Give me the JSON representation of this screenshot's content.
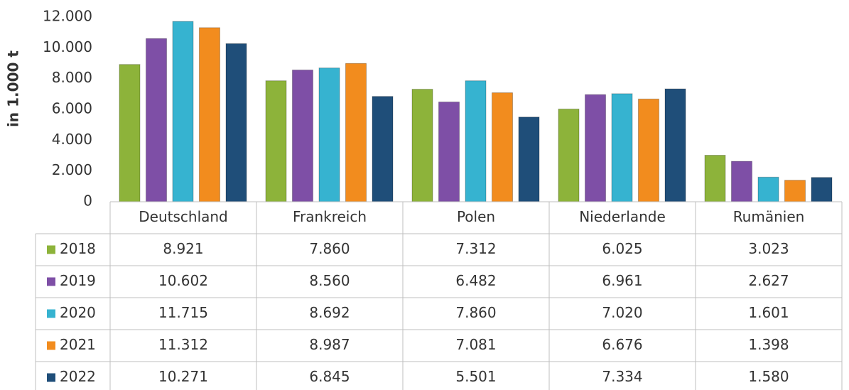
{
  "chart_data": {
    "type": "bar",
    "y_label": "in 1.000 t",
    "categories": [
      "Deutschland",
      "Frankreich",
      "Polen",
      "Niederlande",
      "Rumänien"
    ],
    "series": [
      {
        "name": "2018",
        "color": "#8db33a",
        "values": [
          8921,
          7860,
          7312,
          6025,
          3023
        ],
        "value_labels": [
          "8.921",
          "7.860",
          "7.312",
          "6.025",
          "3.023"
        ]
      },
      {
        "name": "2019",
        "color": "#7e4fa6",
        "values": [
          10602,
          8560,
          6482,
          6961,
          2627
        ],
        "value_labels": [
          "10.602",
          "8.560",
          "6.482",
          "6.961",
          "2.627"
        ]
      },
      {
        "name": "2020",
        "color": "#36b3d0",
        "values": [
          11715,
          8692,
          7860,
          7020,
          1601
        ],
        "value_labels": [
          "11.715",
          "8.692",
          "7.860",
          "7.020",
          "1.601"
        ]
      },
      {
        "name": "2021",
        "color": "#f28c1e",
        "values": [
          11312,
          8987,
          7081,
          6676,
          1398
        ],
        "value_labels": [
          "11.312",
          "8.987",
          "7.081",
          "6.676",
          "1.398"
        ]
      },
      {
        "name": "2022",
        "color": "#1f4e79",
        "values": [
          10271,
          6845,
          5501,
          7334,
          1580
        ],
        "value_labels": [
          "10.271",
          "6.845",
          "5.501",
          "7.334",
          "1.580"
        ]
      }
    ],
    "ylim": [
      0,
      12000
    ],
    "yticks": [
      0,
      {
        "value": 2000,
        "label": "2.000"
      },
      {
        "value": 4000,
        "label": "4.000"
      },
      {
        "value": 6000,
        "label": "6.000"
      },
      {
        "value": 8000,
        "label": "8.000"
      },
      {
        "value": 10000,
        "label": "10.000"
      },
      {
        "value": 12000,
        "label": "12.000"
      }
    ],
    "grid": false
  }
}
